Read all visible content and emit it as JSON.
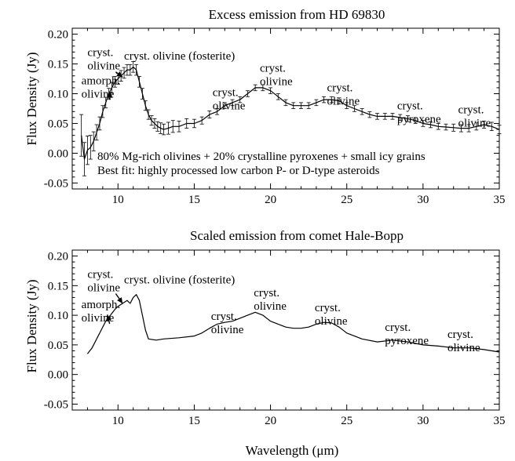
{
  "chart_data": [
    {
      "type": "line",
      "title": "Excess emission from HD 69830",
      "xlabel": "",
      "ylabel": "Flux Density (Jy)",
      "xlim": [
        7,
        35
      ],
      "ylim": [
        -0.06,
        0.21
      ],
      "xticks": [
        "10",
        "15",
        "20",
        "25",
        "30",
        "35"
      ],
      "yticks": [
        "-0.05",
        "0.00",
        "0.05",
        "0.10",
        "0.15",
        "0.20"
      ],
      "error_bars": true,
      "series": [
        {
          "x": [
            7.6,
            7.8,
            8.0,
            8.2,
            8.4,
            8.6,
            8.8,
            9.0,
            9.2,
            9.4,
            9.6,
            9.8,
            10.0,
            10.2,
            10.4,
            10.6,
            10.8,
            11.0,
            11.2,
            11.4,
            11.6,
            11.8,
            12.0,
            12.2,
            12.4,
            12.6,
            12.8,
            13.0,
            13.3,
            13.6,
            14.0,
            14.5,
            15.0,
            15.5,
            16.0,
            16.5,
            17.0,
            17.5,
            18.0,
            18.5,
            19.0,
            19.5,
            20.0,
            20.5,
            21.0,
            21.5,
            22.0,
            22.5,
            23.0,
            23.5,
            24.0,
            24.5,
            25.0,
            25.5,
            26.0,
            26.5,
            27.0,
            27.5,
            28.0,
            28.5,
            29.0,
            29.5,
            30.0,
            30.5,
            31.0,
            31.5,
            32.0,
            32.5,
            33.0,
            33.5,
            34.0,
            34.5,
            35.0
          ],
          "y": [
            0.03,
            -0.01,
            0.005,
            0.01,
            0.02,
            0.035,
            0.05,
            0.07,
            0.085,
            0.1,
            0.11,
            0.12,
            0.125,
            0.13,
            0.135,
            0.14,
            0.14,
            0.145,
            0.14,
            0.12,
            0.1,
            0.08,
            0.065,
            0.055,
            0.05,
            0.045,
            0.042,
            0.04,
            0.042,
            0.045,
            0.045,
            0.05,
            0.05,
            0.055,
            0.065,
            0.07,
            0.08,
            0.085,
            0.09,
            0.1,
            0.11,
            0.11,
            0.105,
            0.095,
            0.085,
            0.08,
            0.08,
            0.08,
            0.085,
            0.09,
            0.09,
            0.088,
            0.08,
            0.075,
            0.07,
            0.065,
            0.062,
            0.062,
            0.062,
            0.06,
            0.058,
            0.055,
            0.05,
            0.048,
            0.045,
            0.044,
            0.043,
            0.042,
            0.042,
            0.045,
            0.048,
            0.045,
            0.04
          ],
          "err": [
            0.035,
            0.028,
            0.024,
            0.02,
            0.016,
            0.013,
            0.011,
            0.01,
            0.009,
            0.009,
            0.009,
            0.009,
            0.009,
            0.009,
            0.009,
            0.009,
            0.009,
            0.009,
            0.009,
            0.009,
            0.009,
            0.008,
            0.008,
            0.008,
            0.008,
            0.008,
            0.009,
            0.009,
            0.01,
            0.01,
            0.009,
            0.008,
            0.007,
            0.006,
            0.006,
            0.005,
            0.005,
            0.005,
            0.005,
            0.005,
            0.005,
            0.005,
            0.005,
            0.005,
            0.005,
            0.005,
            0.005,
            0.005,
            0.005,
            0.005,
            0.005,
            0.005,
            0.005,
            0.005,
            0.005,
            0.005,
            0.005,
            0.005,
            0.005,
            0.005,
            0.005,
            0.005,
            0.005,
            0.005,
            0.005,
            0.005,
            0.006,
            0.006,
            0.006,
            0.006,
            0.006,
            0.007,
            0.007
          ]
        }
      ],
      "annotations": [
        {
          "text": "cryst. olivine",
          "x": 8.0,
          "y": 0.163,
          "arrow_to": [
            10.3,
            0.128
          ]
        },
        {
          "text": "amorph. olivine",
          "x": 7.6,
          "y": 0.116,
          "arrow_to": [
            9.5,
            0.103
          ]
        },
        {
          "text": "cryst. olivine (fosterite)",
          "x": 10.4,
          "y": 0.157
        },
        {
          "text": "cryst. olivine",
          "x": 16.2,
          "y": 0.096
        },
        {
          "text": "cryst. olivine",
          "x": 19.3,
          "y": 0.137
        },
        {
          "text": "cryst. olivine",
          "x": 23.7,
          "y": 0.104
        },
        {
          "text": "cryst. pyroxene",
          "x": 28.3,
          "y": 0.074
        },
        {
          "text": "cryst. olivine",
          "x": 32.3,
          "y": 0.067
        }
      ],
      "notes": [
        "80% Mg-rich olivines + 20% crystalline pyroxenes + small icy grains",
        "Best fit: highly processed low carbon P- or D-type asteroids"
      ]
    },
    {
      "type": "line",
      "title": "Scaled emission from comet Hale-Bopp",
      "xlabel": "Wavelength (μm)",
      "ylabel": "Flux Density (Jy)",
      "xlim": [
        7,
        35
      ],
      "ylim": [
        -0.06,
        0.21
      ],
      "xticks": [
        "10",
        "15",
        "20",
        "25",
        "30",
        "35"
      ],
      "yticks": [
        "-0.05",
        "0.00",
        "0.05",
        "0.10",
        "0.15",
        "0.20"
      ],
      "error_bars": false,
      "series": [
        {
          "x": [
            8.0,
            8.3,
            8.6,
            8.9,
            9.2,
            9.5,
            9.8,
            10.0,
            10.3,
            10.6,
            10.8,
            11.0,
            11.2,
            11.4,
            11.6,
            11.8,
            12.0,
            12.5,
            13.0,
            14.0,
            15.0,
            15.5,
            16.0,
            16.5,
            17.0,
            17.5,
            18.0,
            18.5,
            19.0,
            19.5,
            20.0,
            20.5,
            21.0,
            21.5,
            22.0,
            22.5,
            23.0,
            23.5,
            24.0,
            24.5,
            25.0,
            25.5,
            26.0,
            27.0,
            28.0,
            29.0,
            30.0,
            31.0,
            32.0,
            33.0,
            34.0,
            35.0
          ],
          "y": [
            0.035,
            0.045,
            0.06,
            0.075,
            0.09,
            0.1,
            0.11,
            0.115,
            0.12,
            0.125,
            0.12,
            0.13,
            0.135,
            0.125,
            0.1,
            0.075,
            0.06,
            0.058,
            0.06,
            0.062,
            0.065,
            0.07,
            0.078,
            0.085,
            0.088,
            0.09,
            0.095,
            0.1,
            0.105,
            0.1,
            0.09,
            0.085,
            0.08,
            0.078,
            0.078,
            0.08,
            0.085,
            0.088,
            0.087,
            0.08,
            0.07,
            0.065,
            0.06,
            0.055,
            0.058,
            0.055,
            0.05,
            0.048,
            0.045,
            0.045,
            0.042,
            0.038
          ]
        }
      ],
      "annotations": [
        {
          "text": "cryst. olivine",
          "x": 8.0,
          "y": 0.163,
          "arrow_to": [
            10.3,
            0.12
          ]
        },
        {
          "text": "amorph. olivine",
          "x": 7.6,
          "y": 0.112,
          "arrow_to": [
            9.3,
            0.101
          ]
        },
        {
          "text": "cryst. olivine (fosterite)",
          "x": 10.4,
          "y": 0.154
        },
        {
          "text": "cryst. olivine",
          "x": 16.1,
          "y": 0.092
        },
        {
          "text": "cryst. olivine",
          "x": 18.9,
          "y": 0.132
        },
        {
          "text": "cryst. olivine",
          "x": 22.9,
          "y": 0.107
        },
        {
          "text": "cryst. pyroxene",
          "x": 27.5,
          "y": 0.074
        },
        {
          "text": "cryst. olivine",
          "x": 31.6,
          "y": 0.062
        }
      ]
    }
  ]
}
